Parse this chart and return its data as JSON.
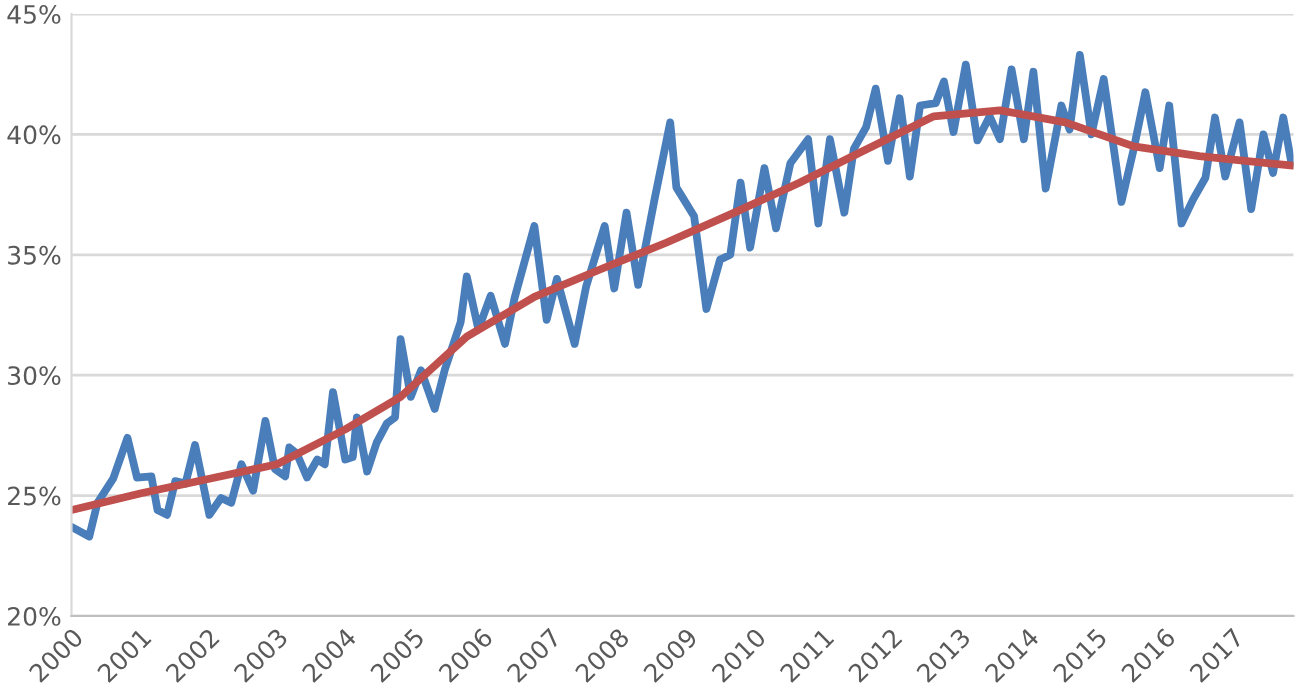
{
  "chart_data": {
    "type": "line",
    "series": [
      {
        "color": "#4a7ebb",
        "x": [
          2000.0,
          2000.26,
          2000.38,
          2000.61,
          2000.82,
          2000.96,
          2001.17,
          2001.26,
          2001.4,
          2001.52,
          2001.67,
          2001.81,
          2002.02,
          2002.19,
          2002.34,
          2002.49,
          2002.66,
          2002.84,
          2002.98,
          2003.13,
          2003.19,
          2003.3,
          2003.45,
          2003.6,
          2003.71,
          2003.83,
          2004.01,
          2004.12,
          2004.18,
          2004.33,
          2004.47,
          2004.62,
          2004.74,
          2004.82,
          2004.97,
          2005.12,
          2005.32,
          2005.47,
          2005.7,
          2005.79,
          2005.96,
          2006.14,
          2006.35,
          2006.49,
          2006.78,
          2006.96,
          2007.11,
          2007.37,
          2007.54,
          2007.81,
          2007.95,
          2008.13,
          2008.3,
          2008.54,
          2008.77,
          2008.86,
          2009.12,
          2009.3,
          2009.5,
          2009.65,
          2009.8,
          2009.94,
          2010.15,
          2010.32,
          2010.53,
          2010.79,
          2010.94,
          2011.11,
          2011.32,
          2011.46,
          2011.64,
          2011.78,
          2011.96,
          2012.13,
          2012.28,
          2012.43,
          2012.66,
          2012.78,
          2012.92,
          2013.1,
          2013.27,
          2013.45,
          2013.6,
          2013.77,
          2013.95,
          2014.09,
          2014.27,
          2014.5,
          2014.62,
          2014.77,
          2014.94,
          2015.12,
          2015.38,
          2015.56,
          2015.73,
          2015.94,
          2016.08,
          2016.26,
          2016.43,
          2016.61,
          2016.75,
          2016.9,
          2017.11,
          2017.28,
          2017.46,
          2017.6,
          2017.75,
          2017.87
        ],
        "values": [
          23.7,
          23.3,
          24.7,
          25.7,
          27.4,
          25.75,
          25.8,
          24.4,
          24.2,
          25.6,
          25.5,
          27.1,
          24.2,
          24.9,
          24.7,
          26.3,
          25.2,
          28.1,
          26.1,
          25.8,
          27.0,
          26.75,
          25.75,
          26.5,
          26.3,
          29.3,
          26.5,
          26.6,
          28.25,
          26.0,
          27.2,
          28.0,
          28.25,
          31.5,
          29.1,
          30.2,
          28.6,
          30.25,
          32.2,
          34.1,
          31.9,
          33.3,
          31.3,
          33.2,
          36.2,
          32.3,
          34.0,
          31.3,
          33.7,
          36.2,
          33.6,
          36.75,
          33.75,
          37.3,
          40.5,
          37.8,
          36.6,
          32.75,
          34.8,
          35.0,
          38.0,
          35.3,
          38.6,
          36.1,
          38.8,
          39.8,
          36.3,
          39.8,
          36.75,
          39.4,
          40.3,
          41.9,
          38.9,
          41.5,
          38.25,
          41.2,
          41.3,
          42.2,
          40.1,
          42.9,
          39.75,
          40.75,
          39.8,
          42.7,
          39.8,
          42.6,
          37.75,
          41.2,
          40.2,
          43.3,
          40.0,
          42.3,
          37.2,
          39.4,
          41.75,
          38.6,
          41.2,
          36.3,
          37.3,
          38.2,
          40.7,
          38.25,
          40.5,
          36.9,
          40.0,
          38.4,
          40.7,
          38.8
        ]
      },
      {
        "color": "#c0504d",
        "x": [
          2000.0,
          2001.02,
          2002.02,
          2003.01,
          2004.01,
          2004.82,
          2005.79,
          2006.78,
          2007.75,
          2008.71,
          2009.71,
          2010.67,
          2011.55,
          2012.63,
          2013.6,
          2014.56,
          2015.56,
          2016.52,
          2017.89
        ],
        "values": [
          24.4,
          25.1,
          25.7,
          26.3,
          27.75,
          29.1,
          31.6,
          33.25,
          34.4,
          35.5,
          36.75,
          38.0,
          39.25,
          40.75,
          41.0,
          40.5,
          39.5,
          39.1,
          38.7
        ]
      }
    ],
    "xlim": [
      2000,
      2017.9
    ],
    "xticks": [
      2000,
      2001,
      2002,
      2003,
      2004,
      2005,
      2006,
      2007,
      2008,
      2009,
      2010,
      2011,
      2012,
      2013,
      2014,
      2015,
      2016,
      2017
    ],
    "ylim": [
      20,
      45
    ],
    "yticks": [
      {
        "value": 20,
        "label": "20%"
      },
      {
        "value": 25,
        "label": "25%"
      },
      {
        "value": 30,
        "label": "30%"
      },
      {
        "value": 35,
        "label": "35%"
      },
      {
        "value": 40,
        "label": "40%"
      },
      {
        "value": 45,
        "label": "45%"
      }
    ],
    "grid": "y",
    "marker": "none",
    "line_style": "solid"
  }
}
